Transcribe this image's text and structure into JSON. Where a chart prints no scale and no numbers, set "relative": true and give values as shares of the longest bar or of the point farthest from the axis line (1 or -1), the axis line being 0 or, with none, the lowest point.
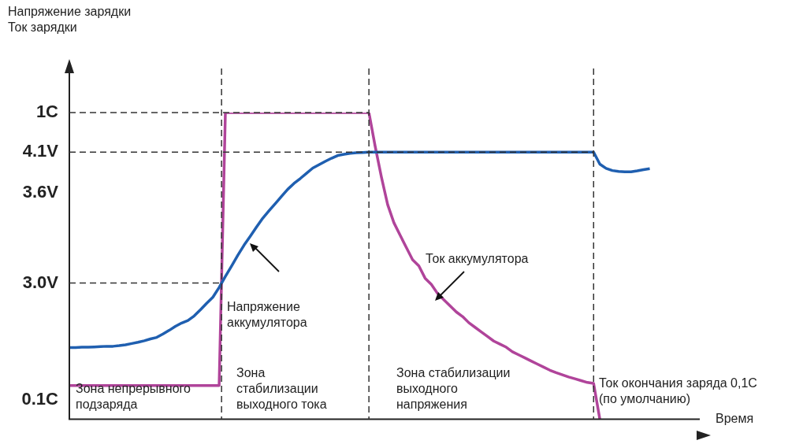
{
  "chart_data": {
    "type": "line",
    "relative": true,
    "xlabel": "Время",
    "legend": false,
    "grid": false,
    "marker": "none",
    "line_style": "solid",
    "categories": [
      null,
      null,
      null,
      null,
      null,
      null,
      null,
      null,
      null,
      null,
      null,
      null,
      null,
      null,
      null,
      null,
      null,
      null,
      null,
      null,
      null,
      null,
      null,
      null,
      null,
      null,
      null,
      null,
      null,
      null,
      null,
      null,
      null,
      null,
      null,
      null,
      null,
      null,
      null,
      null,
      null,
      null,
      null,
      null,
      null,
      null,
      null,
      null,
      null,
      null,
      null,
      null,
      null,
      null,
      null,
      null,
      null,
      null,
      null,
      null,
      null,
      null,
      null,
      null,
      null,
      null,
      null,
      null,
      null,
      null,
      null,
      null,
      null,
      null,
      null,
      null,
      null,
      null,
      null,
      null,
      null,
      null,
      null,
      null,
      null,
      null,
      null,
      null,
      null,
      null,
      null,
      null,
      null,
      null,
      null,
      null,
      null,
      null,
      null,
      null,
      null
    ],
    "series": [
      {
        "color": "#1f5fb0",
        "values": [
          0.234,
          0.234,
          0.235,
          0.235,
          0.236,
          0.237,
          0.238,
          0.238,
          0.24,
          0.243,
          0.247,
          0.251,
          0.256,
          0.262,
          0.267,
          0.278,
          0.29,
          0.303,
          0.314,
          0.322,
          0.337,
          0.357,
          0.378,
          0.398,
          0.43,
          0.466,
          0.5,
          0.535,
          0.568,
          0.597,
          0.627,
          0.656,
          0.68,
          0.703,
          0.727,
          0.75,
          0.769,
          0.785,
          0.802,
          0.819,
          0.83,
          0.841,
          0.851,
          0.86,
          0.864,
          0.867,
          0.869,
          0.87,
          0.871,
          0.871,
          0.871,
          0.871,
          0.871,
          0.871,
          0.871,
          0.871,
          0.871,
          0.871,
          0.871,
          0.871,
          0.871,
          0.871,
          0.871,
          0.871,
          0.871,
          0.871,
          0.871,
          0.871,
          0.871,
          0.871,
          0.871,
          0.871,
          0.871,
          0.871,
          0.871,
          0.871,
          0.871,
          0.871,
          0.871,
          0.871,
          0.871,
          0.871,
          0.871,
          0.871,
          0.871,
          0.832,
          0.818,
          0.811,
          0.808,
          0.807,
          0.807,
          0.81,
          0.814,
          0.817,
          null,
          null,
          null,
          null,
          null,
          null,
          null
        ]
      },
      {
        "color": "#b0449a",
        "values": [
          0.11,
          0.11,
          0.11,
          0.11,
          0.11,
          0.11,
          0.11,
          0.11,
          0.11,
          0.11,
          0.11,
          0.11,
          0.11,
          0.11,
          0.11,
          0.11,
          0.11,
          0.11,
          0.11,
          0.11,
          0.11,
          0.11,
          0.11,
          0.11,
          0.11,
          1,
          1,
          1,
          1,
          1,
          1,
          1,
          1,
          1,
          1,
          1,
          1,
          1,
          1,
          1,
          1,
          1,
          1,
          1,
          1,
          1,
          1,
          1,
          1,
          0.89,
          0.79,
          0.7,
          0.641,
          0.6,
          0.56,
          0.52,
          0.5,
          0.46,
          0.44,
          0.41,
          0.39,
          0.37,
          0.35,
          0.335,
          0.315,
          0.3,
          0.285,
          0.27,
          0.255,
          0.245,
          0.235,
          0.22,
          0.21,
          0.2,
          0.19,
          0.18,
          0.17,
          0.16,
          0.152,
          0.145,
          0.138,
          0.132,
          0.126,
          0.12,
          0.117,
          0,
          null,
          null,
          null,
          null,
          null,
          null,
          null,
          null,
          null,
          null,
          null,
          null,
          null,
          null,
          null
        ]
      }
    ],
    "ref_lines": [
      {
        "axis": "y",
        "value": 1,
        "label": "1C"
      },
      {
        "axis": "y",
        "value": 0.871,
        "label": "4.1V"
      },
      {
        "axis": "y",
        "value": 0.444,
        "label": "3.0V"
      }
    ],
    "annotations": [
      "Напряжение зарядки\nТок зарядки",
      "Напряжение\nаккумулятора",
      "Ток аккумулятора",
      "Ток окончания заряда 0,1С\n(по умолчанию)",
      "Зона непрерывного\nподзаряда",
      "Зона\nстабилизации\nвыходного тока",
      "Зона стабилизации\nвыходного\nнапряжения",
      "3.6V",
      "0.1C"
    ]
  }
}
